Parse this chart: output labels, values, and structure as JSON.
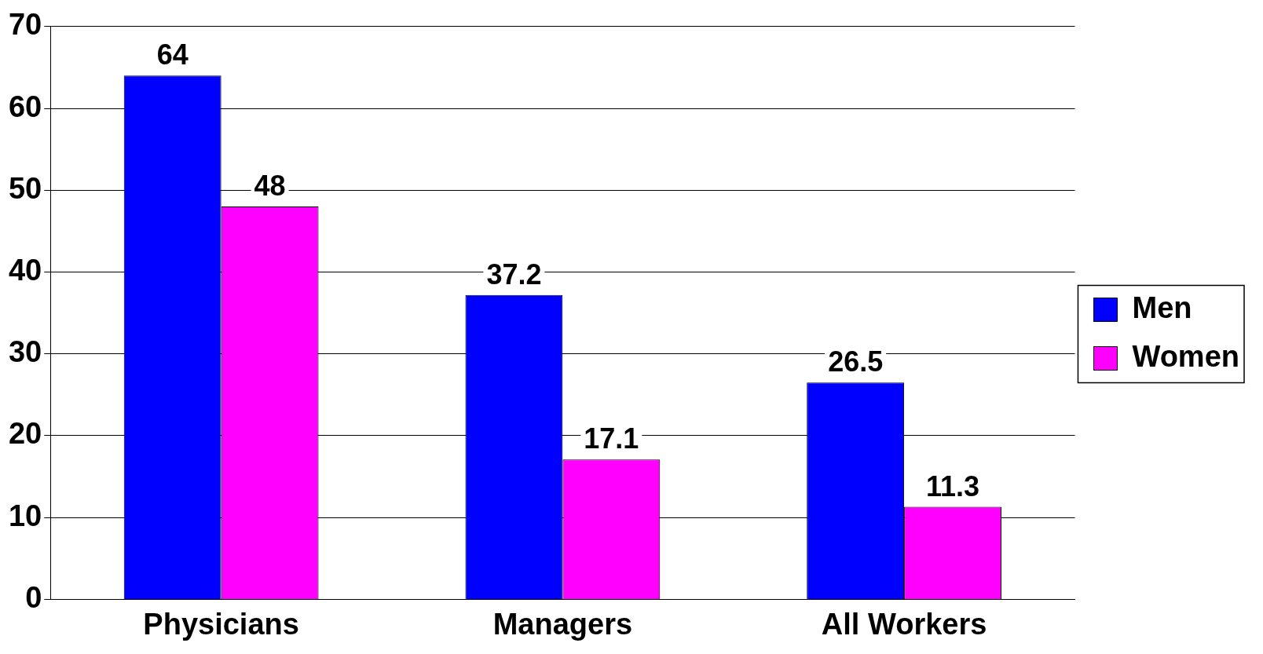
{
  "chart_data": {
    "type": "bar",
    "categories": [
      "Physicians",
      "Managers",
      "All Workers"
    ],
    "series": [
      {
        "name": "Men",
        "color": "#0000ff",
        "values": [
          64,
          37.2,
          26.5
        ]
      },
      {
        "name": "Women",
        "color": "#ff00ff",
        "values": [
          48,
          17.1,
          11.3
        ]
      }
    ],
    "ylim": [
      0,
      70
    ],
    "yticks": [
      0,
      10,
      20,
      30,
      40,
      50,
      60,
      70
    ],
    "grid": "y",
    "legend": "right",
    "data_labels": true
  }
}
